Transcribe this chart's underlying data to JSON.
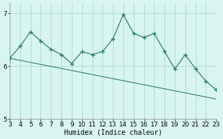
{
  "x": [
    3,
    4,
    5,
    6,
    7,
    8,
    9,
    10,
    11,
    12,
    13,
    14,
    15,
    16,
    17,
    18,
    19,
    20,
    21,
    22,
    23
  ],
  "y": [
    6.15,
    6.38,
    6.65,
    6.48,
    6.32,
    6.22,
    6.05,
    6.28,
    6.22,
    6.28,
    6.52,
    6.98,
    6.62,
    6.55,
    6.62,
    6.28,
    5.95,
    6.22,
    5.95,
    5.72,
    5.55
  ],
  "trend_x": [
    3,
    23
  ],
  "trend_y": [
    6.15,
    5.38
  ],
  "color": "#2e7d6e",
  "background_color": "#d8f5f0",
  "grid_color": "#b0ddd8",
  "xlabel": "Humidex (Indice chaleur)",
  "xlim": [
    3,
    23
  ],
  "ylim": [
    5,
    7.2
  ],
  "yticks": [
    5,
    6,
    7
  ],
  "xticks": [
    3,
    4,
    5,
    6,
    7,
    8,
    9,
    10,
    11,
    12,
    13,
    14,
    15,
    16,
    17,
    18,
    19,
    20,
    21,
    22,
    23
  ],
  "label_fontsize": 7,
  "tick_fontsize": 6.5
}
